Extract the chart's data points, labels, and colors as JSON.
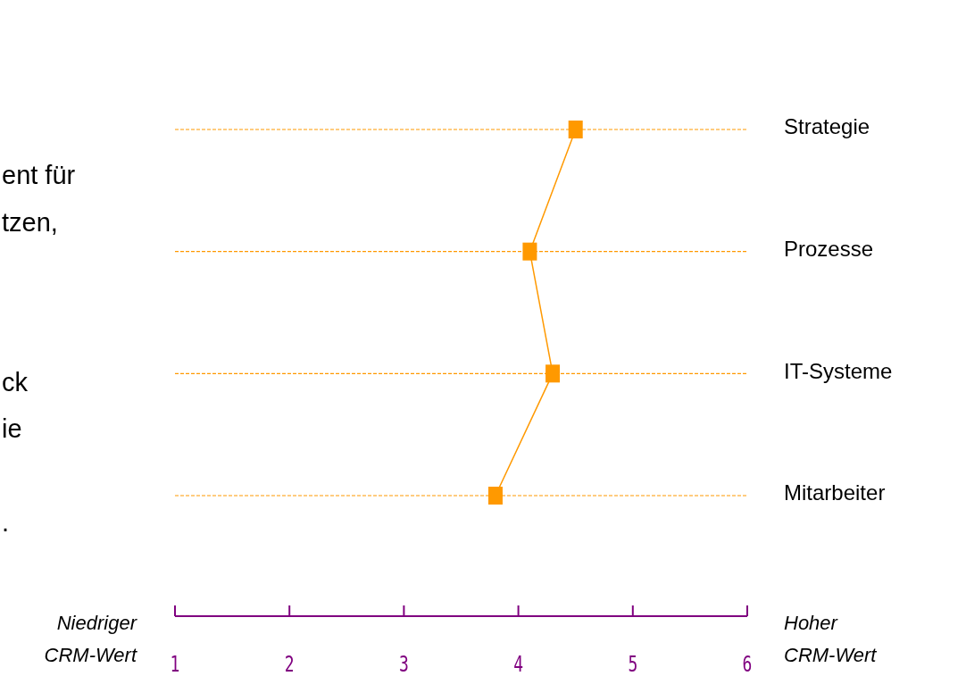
{
  "chart_data": {
    "type": "line",
    "orientation": "horizontal",
    "categories": [
      "Strategie",
      "Prozesse",
      "IT-Systeme",
      "Mitarbeiter"
    ],
    "values": [
      4.5,
      4.1,
      4.3,
      3.8
    ],
    "color": "#ff9900",
    "xlim": [
      1,
      6
    ],
    "xticks": [
      1,
      2,
      3,
      4,
      5,
      6
    ],
    "grid": "y",
    "marker": "square",
    "line_style": "solid",
    "annotations": [
      "ent für",
      "tzen,",
      "ck",
      "ie",
      ".",
      "Niedriger CRM-Wert",
      "Hoher CRM-Wert"
    ]
  }
}
